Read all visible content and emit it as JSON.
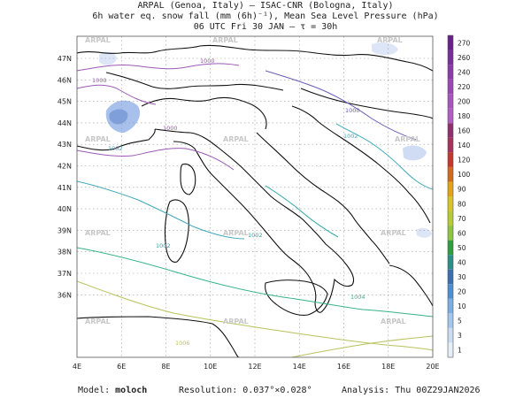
{
  "header": {
    "line1": "ARPAL (Genoa, Italy)  — ISAC-CNR (Bologna, Italy)",
    "line2": "6h water eq. snow fall (mm (6h)⁻¹), Mean Sea Level Pressure (hPa)",
    "line3": "06 UTC Fri 30 JAN  —  τ = 30h"
  },
  "axes": {
    "lon_labels": [
      "4E",
      "6E",
      "8E",
      "10E",
      "12E",
      "14E",
      "16E",
      "18E",
      "20E"
    ],
    "lat_labels": [
      "47N",
      "46N",
      "45N",
      "44N",
      "43N",
      "42N",
      "41N",
      "40N",
      "39N",
      "38N",
      "37N",
      "36N"
    ]
  },
  "colorbar": {
    "levels": [
      "270",
      "260",
      "240",
      "220",
      "200",
      "180",
      "160",
      "140",
      "120",
      "100",
      "90",
      "80",
      "70",
      "60",
      "50",
      "40",
      "30",
      "20",
      "10",
      "5",
      "3",
      "1"
    ],
    "colors": [
      "#6a1f8a",
      "#7b2d99",
      "#8c3aa8",
      "#9b46b4",
      "#a853bf",
      "#b25cc4",
      "#8f2f6f",
      "#a8325c",
      "#c0392b",
      "#d2691e",
      "#e3a21a",
      "#d8c22e",
      "#b6c93a",
      "#8cc63f",
      "#2e9e3e",
      "#2a8f8a",
      "#3b6fb0",
      "#4d8fd4",
      "#7aaee4",
      "#a2c7ee",
      "#c8dcf4",
      "#e6eefa"
    ]
  },
  "watermark": "ARPAL",
  "isobars": [
    "1000",
    "1000",
    "1000",
    "1000",
    "1002",
    "1002",
    "1002",
    "1002",
    "1004",
    "1006"
  ],
  "footer": {
    "model_label": "Model:",
    "model_value": "moloch",
    "resolution_label": "Resolution:",
    "resolution_value": "0.037°×0.028°",
    "analysis_label": "Analysis:",
    "analysis_value": "Thu 00Z29JAN2026"
  }
}
